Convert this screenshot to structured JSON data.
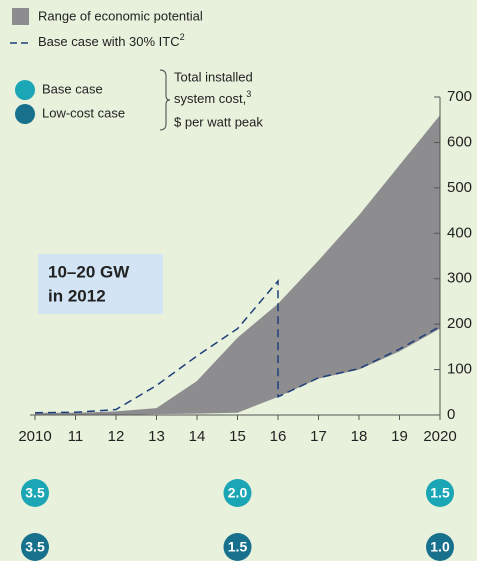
{
  "chart_data": {
    "type": "range-area",
    "xticks": [
      {
        "value": 2010,
        "label": "2010"
      },
      {
        "value": 2011,
        "label": "11"
      },
      {
        "value": 2012,
        "label": "12"
      },
      {
        "value": 2013,
        "label": "13"
      },
      {
        "value": 2014,
        "label": "14"
      },
      {
        "value": 2015,
        "label": "15"
      },
      {
        "value": 2016,
        "label": "16"
      },
      {
        "value": 2017,
        "label": "17"
      },
      {
        "value": 2018,
        "label": "18"
      },
      {
        "value": 2019,
        "label": "19"
      },
      {
        "value": 2020,
        "label": "2020"
      }
    ],
    "xlim": [
      2010,
      2020
    ],
    "ylim": [
      0,
      700
    ],
    "yticks": [
      0,
      100,
      200,
      300,
      400,
      500,
      600,
      700
    ],
    "range": {
      "name": "Range of economic potential",
      "color": "#8d8d8f",
      "x": [
        2010,
        2011,
        2012,
        2013,
        2014,
        2015,
        2016,
        2017,
        2018,
        2019,
        2020
      ],
      "low": [
        0,
        0,
        0,
        2,
        3,
        5,
        40,
        80,
        100,
        140,
        190
      ],
      "high": [
        5,
        5,
        8,
        15,
        75,
        170,
        245,
        340,
        440,
        550,
        660
      ]
    },
    "line": {
      "name": "Base case with 30% ITC",
      "footnote": "2",
      "color": "#1f3f7a",
      "x": [
        2010,
        2011,
        2012,
        2013,
        2014,
        2015,
        2016,
        2016,
        2017,
        2018,
        2019,
        2020
      ],
      "values": [
        5,
        6,
        12,
        65,
        130,
        190,
        295,
        40,
        82,
        102,
        145,
        195
      ]
    },
    "annotation": [
      "10–20 GW",
      "in 2012"
    ],
    "cost_legend": {
      "lines": [
        "Total installed",
        "system cost,",
        "$ per watt peak"
      ],
      "footnote": "3"
    },
    "costs": {
      "x": [
        2010,
        2015,
        2020
      ],
      "series": [
        {
          "name": "Base case",
          "color": "#1aa6b4",
          "values": [
            3.5,
            2.0,
            1.5
          ],
          "value_labels": [
            "3.5",
            "2.0",
            "1.5"
          ]
        },
        {
          "name": "Low-cost case",
          "color": "#17718d",
          "values": [
            3.5,
            1.5,
            1.0
          ],
          "value_labels": [
            "3.5",
            "1.5",
            "1.0"
          ]
        }
      ]
    }
  }
}
